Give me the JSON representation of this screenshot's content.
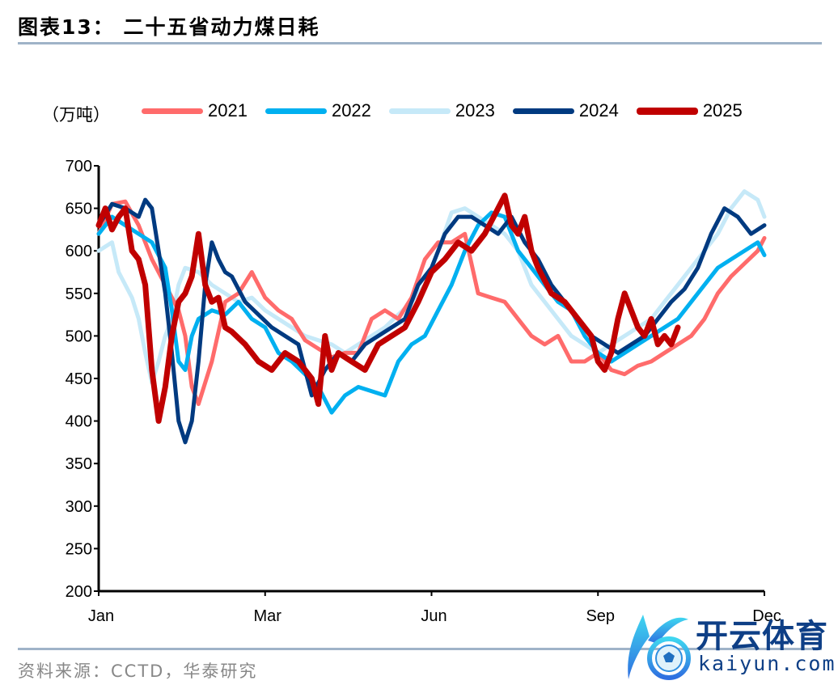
{
  "header": {
    "title": "图表13：  二十五省动力煤日耗"
  },
  "footer": {
    "source": "资料来源：CCTD，华泰研究"
  },
  "watermark": {
    "cn": "开云体育",
    "en": "kaiyun.com"
  },
  "chart_data": {
    "type": "line",
    "title": "二十五省动力煤日耗",
    "ylabel": "（万吨）",
    "xlabel": "",
    "ylim": [
      200,
      700
    ],
    "yticks": [
      200,
      250,
      300,
      350,
      400,
      450,
      500,
      550,
      600,
      650,
      700
    ],
    "xticks": [
      "Jan",
      "Mar",
      "Jun",
      "Sep",
      "Dec"
    ],
    "grid": false,
    "legend_position": "top",
    "x_note": "x values are fractional position across Jan..Dec (0 = Jan, 1 = Dec)",
    "series": [
      {
        "name": "2021",
        "color": "#ff6b6b",
        "width": 5,
        "x": [
          0,
          0.02,
          0.04,
          0.06,
          0.08,
          0.1,
          0.12,
          0.13,
          0.14,
          0.15,
          0.17,
          0.19,
          0.21,
          0.23,
          0.25,
          0.27,
          0.29,
          0.31,
          0.33,
          0.35,
          0.37,
          0.39,
          0.41,
          0.43,
          0.45,
          0.47,
          0.49,
          0.51,
          0.53,
          0.55,
          0.57,
          0.59,
          0.61,
          0.63,
          0.65,
          0.67,
          0.69,
          0.71,
          0.73,
          0.75,
          0.77,
          0.79,
          0.81,
          0.83,
          0.85,
          0.87,
          0.89,
          0.91,
          0.93,
          0.95,
          0.97,
          0.99,
          1.0
        ],
        "y": [
          620,
          655,
          658,
          630,
          590,
          560,
          530,
          500,
          440,
          420,
          470,
          540,
          550,
          575,
          545,
          530,
          520,
          495,
          485,
          475,
          480,
          480,
          520,
          530,
          520,
          545,
          590,
          610,
          610,
          620,
          550,
          545,
          540,
          520,
          500,
          490,
          500,
          470,
          470,
          480,
          460,
          455,
          465,
          470,
          480,
          490,
          500,
          520,
          550,
          570,
          585,
          600,
          615
        ]
      },
      {
        "name": "2022",
        "color": "#00b0f0",
        "width": 5,
        "x": [
          0,
          0.02,
          0.04,
          0.06,
          0.08,
          0.1,
          0.11,
          0.12,
          0.13,
          0.14,
          0.15,
          0.17,
          0.19,
          0.21,
          0.23,
          0.25,
          0.27,
          0.29,
          0.31,
          0.33,
          0.35,
          0.37,
          0.39,
          0.41,
          0.43,
          0.45,
          0.47,
          0.49,
          0.51,
          0.53,
          0.55,
          0.57,
          0.59,
          0.61,
          0.63,
          0.65,
          0.67,
          0.69,
          0.71,
          0.73,
          0.75,
          0.77,
          0.79,
          0.81,
          0.83,
          0.85,
          0.87,
          0.89,
          0.91,
          0.93,
          0.95,
          0.97,
          0.99,
          1.0
        ],
        "y": [
          620,
          640,
          630,
          620,
          610,
          580,
          530,
          470,
          460,
          500,
          520,
          530,
          525,
          540,
          520,
          510,
          480,
          470,
          455,
          440,
          410,
          430,
          440,
          435,
          430,
          470,
          490,
          500,
          530,
          560,
          600,
          630,
          645,
          640,
          600,
          580,
          560,
          540,
          530,
          500,
          480,
          470,
          480,
          490,
          500,
          510,
          520,
          540,
          560,
          580,
          590,
          600,
          610,
          595
        ]
      },
      {
        "name": "2023",
        "color": "#c6e9f8",
        "width": 5,
        "x": [
          0,
          0.02,
          0.03,
          0.05,
          0.06,
          0.07,
          0.08,
          0.09,
          0.1,
          0.11,
          0.12,
          0.13,
          0.15,
          0.17,
          0.19,
          0.21,
          0.23,
          0.25,
          0.27,
          0.29,
          0.31,
          0.33,
          0.35,
          0.37,
          0.39,
          0.41,
          0.43,
          0.45,
          0.47,
          0.49,
          0.51,
          0.53,
          0.55,
          0.57,
          0.59,
          0.61,
          0.63,
          0.65,
          0.67,
          0.69,
          0.71,
          0.73,
          0.75,
          0.77,
          0.79,
          0.81,
          0.83,
          0.85,
          0.87,
          0.89,
          0.91,
          0.93,
          0.95,
          0.97,
          0.99,
          1.0
        ],
        "y": [
          600,
          610,
          575,
          545,
          520,
          480,
          445,
          470,
          500,
          520,
          560,
          580,
          575,
          560,
          550,
          540,
          545,
          530,
          520,
          510,
          500,
          495,
          490,
          480,
          490,
          500,
          510,
          525,
          540,
          560,
          600,
          645,
          650,
          640,
          630,
          620,
          600,
          560,
          540,
          520,
          500,
          490,
          480,
          490,
          500,
          510,
          520,
          540,
          560,
          580,
          600,
          620,
          650,
          670,
          660,
          640
        ]
      },
      {
        "name": "2024",
        "color": "#003a80",
        "width": 5,
        "x": [
          0,
          0.02,
          0.04,
          0.06,
          0.07,
          0.08,
          0.09,
          0.1,
          0.11,
          0.12,
          0.13,
          0.14,
          0.15,
          0.16,
          0.17,
          0.18,
          0.19,
          0.2,
          0.22,
          0.24,
          0.26,
          0.28,
          0.3,
          0.32,
          0.34,
          0.36,
          0.38,
          0.4,
          0.42,
          0.44,
          0.46,
          0.48,
          0.5,
          0.52,
          0.54,
          0.56,
          0.58,
          0.6,
          0.62,
          0.64,
          0.66,
          0.68,
          0.7,
          0.72,
          0.74,
          0.76,
          0.78,
          0.8,
          0.82,
          0.84,
          0.86,
          0.88,
          0.9,
          0.92,
          0.94,
          0.96,
          0.98,
          1.0
        ],
        "y": [
          630,
          655,
          650,
          640,
          660,
          650,
          600,
          550,
          480,
          400,
          375,
          400,
          470,
          560,
          610,
          590,
          575,
          570,
          540,
          525,
          510,
          500,
          490,
          430,
          460,
          480,
          470,
          490,
          500,
          510,
          520,
          560,
          580,
          620,
          640,
          640,
          630,
          620,
          640,
          610,
          590,
          560,
          540,
          520,
          500,
          490,
          480,
          490,
          500,
          520,
          540,
          555,
          580,
          620,
          650,
          640,
          620,
          630
        ]
      },
      {
        "name": "2025",
        "color": "#c00000",
        "width": 7,
        "x": [
          0,
          0.01,
          0.02,
          0.03,
          0.04,
          0.05,
          0.06,
          0.07,
          0.08,
          0.09,
          0.1,
          0.11,
          0.12,
          0.13,
          0.14,
          0.15,
          0.16,
          0.17,
          0.18,
          0.19,
          0.2,
          0.22,
          0.24,
          0.26,
          0.28,
          0.3,
          0.32,
          0.33,
          0.34,
          0.35,
          0.36,
          0.38,
          0.4,
          0.42,
          0.44,
          0.46,
          0.48,
          0.5,
          0.52,
          0.54,
          0.56,
          0.58,
          0.6,
          0.61,
          0.62,
          0.63,
          0.64,
          0.65,
          0.66,
          0.68,
          0.7,
          0.72,
          0.74,
          0.75,
          0.76,
          0.77,
          0.78,
          0.79,
          0.8,
          0.81,
          0.82,
          0.83,
          0.84,
          0.85,
          0.86,
          0.87
        ],
        "y": [
          630,
          650,
          625,
          640,
          650,
          600,
          590,
          560,
          460,
          400,
          440,
          500,
          540,
          550,
          570,
          620,
          560,
          540,
          545,
          510,
          505,
          490,
          470,
          460,
          480,
          470,
          450,
          420,
          500,
          460,
          480,
          470,
          460,
          490,
          500,
          510,
          540,
          575,
          590,
          610,
          600,
          620,
          650,
          665,
          630,
          620,
          640,
          600,
          580,
          550,
          540,
          520,
          500,
          470,
          460,
          480,
          520,
          550,
          530,
          510,
          500,
          520,
          490,
          500,
          490,
          510
        ]
      }
    ]
  }
}
